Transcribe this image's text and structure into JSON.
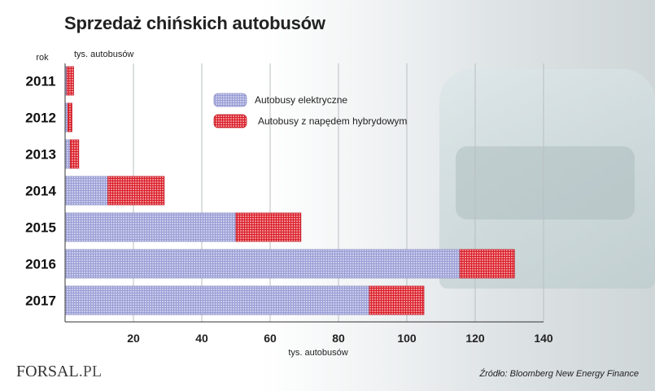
{
  "title": "Sprzedaż chińskich autobusów",
  "brand": {
    "name": "FORSAL",
    "suffix": ".PL"
  },
  "source": "Źródło: Bloomberg New Energy Finance",
  "chart_data": {
    "type": "bar",
    "orientation": "horizontal",
    "stacked": true,
    "row_axis_label": "rok",
    "top_label": "tys. autobusów",
    "xlabel": "tys. autobusów",
    "xlim": [
      0,
      140
    ],
    "xticks": [
      20,
      40,
      60,
      80,
      100,
      120,
      140
    ],
    "grid": true,
    "legend_position": "top-center",
    "categories": [
      "2011",
      "2012",
      "2013",
      "2014",
      "2015",
      "2016",
      "2017"
    ],
    "series": [
      {
        "name": "Autobusy elektryczne",
        "color": "#a9acd9",
        "values": [
          0.5,
          0.8,
          1.5,
          12.5,
          50,
          115.5,
          89
        ]
      },
      {
        "name": "Autobusy z napędem hybrydowym",
        "color": "#e4323c",
        "values": [
          2,
          1.2,
          2.5,
          16.5,
          19,
          16,
          16
        ]
      }
    ]
  }
}
